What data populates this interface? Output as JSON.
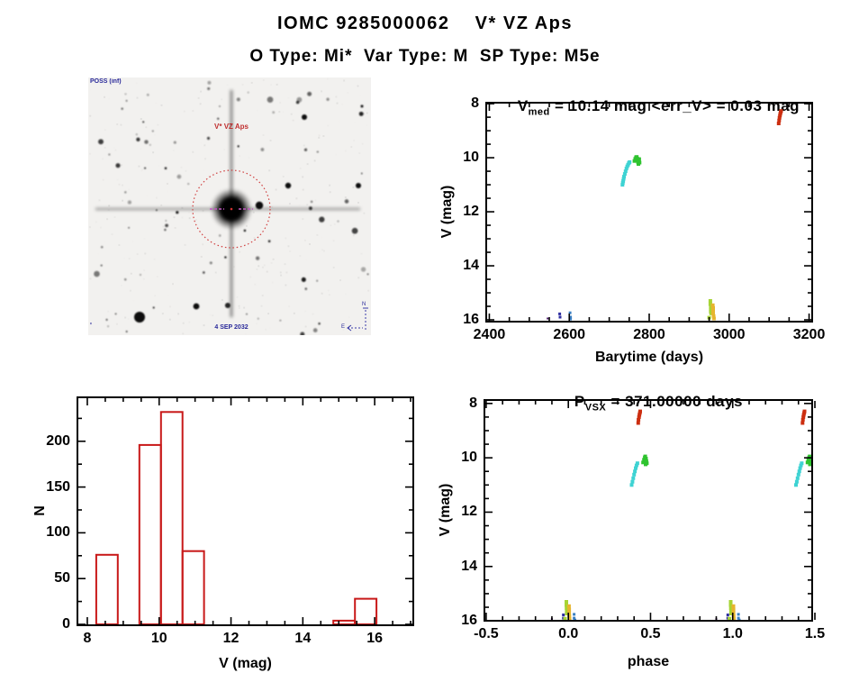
{
  "page": {
    "title": "IOMC 9285000062    V* VZ Aps",
    "subtitle": "O Type: Mi*  Var Type: M  SP Type: M5e",
    "background": "#ffffff",
    "axis_color": "#000000"
  },
  "finder": {
    "survey_label": "POSS (inf)",
    "target_label": "V* VZ Aps",
    "epoch_label": "4 SEP 2032",
    "scale_label": "'",
    "compass": {
      "north": "N",
      "east": "E"
    },
    "marker_color": "#d04040",
    "crosshair_color": "#c45ac4"
  },
  "chart_data": [
    {
      "id": "lightcurve",
      "type": "scatter",
      "title": {
        "main": "V",
        "sub": "med",
        "rest": " = 10.14 mag <err_V> = 0.03 mag"
      },
      "xlabel": "Barytime (days)",
      "ylabel": "V (mag)",
      "xlim": [
        2390,
        3210
      ],
      "ylim": [
        7.93,
        16.1
      ],
      "y_inverted": true,
      "xticks": [
        2400,
        2600,
        2800,
        3000,
        3200
      ],
      "xtick_labels": [
        "2400",
        "2600",
        "2800",
        "3000",
        "3200"
      ],
      "yticks": [
        8,
        10,
        12,
        14,
        16
      ],
      "ytick_labels": [
        "8",
        "10",
        "12",
        "14",
        "16"
      ],
      "x_minor": 50,
      "y_minor": 0.5,
      "grid": false,
      "series": [
        {
          "name": "epoch1-dark-purple",
          "color": "#441166",
          "size": 2,
          "points": [
            [
              2546,
              15.95
            ]
          ]
        },
        {
          "name": "epoch2-navy",
          "color": "#2d2da0",
          "size": 3,
          "points": [
            [
              2576,
              15.78
            ],
            [
              2577,
              15.9
            ]
          ]
        },
        {
          "name": "epoch3-blue",
          "color": "#3a7fc2",
          "size": 3,
          "points": [
            [
              2602,
              15.74
            ],
            [
              2603,
              15.9
            ],
            [
              2603,
              15.97
            ]
          ]
        },
        {
          "name": "epoch4-cyan",
          "color": "#3ed3d3",
          "size": 4,
          "points": [
            [
              2733,
              11.0
            ],
            [
              2734,
              10.93
            ],
            [
              2735,
              10.86
            ],
            [
              2736,
              10.78
            ],
            [
              2737,
              10.7
            ],
            [
              2739,
              10.6
            ],
            [
              2741,
              10.5
            ],
            [
              2743,
              10.4
            ],
            [
              2745,
              10.32
            ],
            [
              2747,
              10.26
            ],
            [
              2749,
              10.2
            ],
            [
              2751,
              10.16
            ]
          ]
        },
        {
          "name": "epoch5-green",
          "color": "#2fc32f",
          "size": 4,
          "points": [
            [
              2763,
              10.12
            ],
            [
              2765,
              10.04
            ],
            [
              2767,
              9.98
            ],
            [
              2769,
              9.97
            ],
            [
              2770,
              10.03
            ],
            [
              2771,
              10.1
            ],
            [
              2772,
              10.17
            ],
            [
              2773,
              10.23
            ],
            [
              2774,
              10.12
            ],
            [
              2775,
              10.05
            ],
            [
              2776,
              10.18
            ],
            [
              2768,
              10.08
            ]
          ]
        },
        {
          "name": "epoch6-yellow-green",
          "color": "#a6d435",
          "size": 4,
          "points": [
            [
              2953,
              15.3
            ],
            [
              2953,
              15.42
            ],
            [
              2954,
              15.52
            ],
            [
              2954,
              15.62
            ],
            [
              2954,
              15.7
            ],
            [
              2955,
              15.76
            ],
            [
              2950,
              15.92
            ]
          ]
        },
        {
          "name": "epoch7-yellow",
          "color": "#e6b42e",
          "size": 4,
          "points": [
            [
              2959,
              15.46
            ],
            [
              2960,
              15.56
            ],
            [
              2960,
              15.66
            ],
            [
              2960,
              15.76
            ],
            [
              2961,
              15.86
            ],
            [
              2962,
              15.95
            ]
          ]
        },
        {
          "name": "epoch8-red",
          "color": "#cc2e10",
          "size": 4,
          "points": [
            [
              3124,
              8.73
            ],
            [
              3125,
              8.62
            ],
            [
              3126,
              8.52
            ],
            [
              3127,
              8.44
            ],
            [
              3128,
              8.37
            ],
            [
              3129,
              8.31
            ],
            [
              3130,
              8.27
            ]
          ]
        }
      ]
    },
    {
      "id": "phase",
      "type": "scatter",
      "title": {
        "main": "P",
        "sub": "VSX",
        "rest": " = 371.00000 days"
      },
      "xlabel": "phase",
      "ylabel": "V (mag)",
      "xlim": [
        -0.516,
        1.489
      ],
      "ylim": [
        7.84,
        16.03
      ],
      "y_inverted": true,
      "xticks": [
        -0.5,
        0.0,
        0.5,
        1.0,
        1.5
      ],
      "xtick_labels": [
        "-0.5",
        "0.0",
        "0.5",
        "1.0",
        "1.5"
      ],
      "yticks": [
        8,
        10,
        12,
        14,
        16
      ],
      "ytick_labels": [
        "8",
        "10",
        "12",
        "14",
        "16"
      ],
      "x_minor": 0.1,
      "y_minor": 0.5,
      "grid": false,
      "series": [
        {
          "name": "epoch1-dark-purple",
          "color": "#441166",
          "size": 2,
          "points": [
            [
              -0.1,
              15.93
            ],
            [
              0.9,
              15.93
            ]
          ]
        },
        {
          "name": "epoch2-navy",
          "color": "#2d2da0",
          "size": 3,
          "points": [
            [
              -0.03,
              15.78
            ],
            [
              -0.03,
              15.9
            ],
            [
              0.97,
              15.78
            ],
            [
              0.97,
              15.9
            ]
          ]
        },
        {
          "name": "epoch3-blue",
          "color": "#3a7fc2",
          "size": 3,
          "points": [
            [
              0.035,
              15.76
            ],
            [
              0.035,
              15.9
            ],
            [
              0.04,
              15.97
            ],
            [
              1.035,
              15.76
            ],
            [
              1.035,
              15.9
            ],
            [
              1.04,
              15.97
            ]
          ]
        },
        {
          "name": "epoch4-cyan",
          "color": "#3ed3d3",
          "size": 4,
          "points": [
            [
              0.385,
              11.0
            ],
            [
              0.39,
              10.88
            ],
            [
              0.395,
              10.75
            ],
            [
              0.4,
              10.62
            ],
            [
              0.405,
              10.5
            ],
            [
              0.41,
              10.38
            ],
            [
              0.415,
              10.28
            ],
            [
              0.42,
              10.2
            ],
            [
              1.385,
              11.0
            ],
            [
              1.39,
              10.88
            ],
            [
              1.395,
              10.75
            ],
            [
              1.4,
              10.62
            ],
            [
              1.405,
              10.5
            ],
            [
              1.41,
              10.38
            ],
            [
              1.415,
              10.28
            ],
            [
              1.42,
              10.2
            ]
          ]
        },
        {
          "name": "epoch5-green",
          "color": "#2fc32f",
          "size": 4,
          "points": [
            [
              0.455,
              10.17
            ],
            [
              0.46,
              10.07
            ],
            [
              0.465,
              9.99
            ],
            [
              0.468,
              9.95
            ],
            [
              0.472,
              10.03
            ],
            [
              0.475,
              10.12
            ],
            [
              0.478,
              10.2
            ],
            [
              0.47,
              10.24
            ],
            [
              0.462,
              10.12
            ],
            [
              1.455,
              10.17
            ],
            [
              1.46,
              10.07
            ],
            [
              1.465,
              9.99
            ],
            [
              1.468,
              9.95
            ],
            [
              1.472,
              10.03
            ],
            [
              1.475,
              10.12
            ],
            [
              1.478,
              10.2
            ],
            [
              1.47,
              10.24
            ],
            [
              1.462,
              10.12
            ]
          ]
        },
        {
          "name": "epoch6-yellow-green",
          "color": "#a6d435",
          "size": 4,
          "points": [
            [
              -0.012,
              15.3
            ],
            [
              -0.012,
              15.42
            ],
            [
              -0.011,
              15.53
            ],
            [
              -0.01,
              15.63
            ],
            [
              -0.01,
              15.73
            ],
            [
              -0.02,
              15.92
            ],
            [
              0.988,
              15.3
            ],
            [
              0.988,
              15.42
            ],
            [
              0.989,
              15.53
            ],
            [
              0.99,
              15.63
            ],
            [
              0.99,
              15.73
            ],
            [
              0.98,
              15.92
            ]
          ]
        },
        {
          "name": "epoch7-yellow",
          "color": "#e6b42e",
          "size": 4,
          "points": [
            [
              0.004,
              15.46
            ],
            [
              0.005,
              15.58
            ],
            [
              0.005,
              15.7
            ],
            [
              0.006,
              15.82
            ],
            [
              0.007,
              15.92
            ],
            [
              1.004,
              15.46
            ],
            [
              1.005,
              15.58
            ],
            [
              1.005,
              15.7
            ],
            [
              1.006,
              15.82
            ],
            [
              1.007,
              15.92
            ]
          ]
        },
        {
          "name": "epoch8-red",
          "color": "#cc2e10",
          "size": 4,
          "points": [
            [
              0.425,
              8.72
            ],
            [
              0.427,
              8.6
            ],
            [
              0.43,
              8.5
            ],
            [
              0.432,
              8.42
            ],
            [
              0.435,
              8.35
            ],
            [
              0.437,
              8.29
            ],
            [
              1.425,
              8.72
            ],
            [
              1.427,
              8.6
            ],
            [
              1.43,
              8.5
            ],
            [
              1.432,
              8.42
            ],
            [
              1.435,
              8.35
            ],
            [
              1.437,
              8.29
            ]
          ]
        }
      ]
    },
    {
      "id": "histogram",
      "type": "histogram",
      "title": null,
      "xlabel": "V (mag)",
      "ylabel": "N",
      "xlim": [
        7.7,
        17.1
      ],
      "ylim": [
        0,
        249
      ],
      "y_inverted": false,
      "xticks": [
        8,
        10,
        12,
        14,
        16
      ],
      "xtick_labels": [
        "8",
        "10",
        "12",
        "14",
        "16"
      ],
      "yticks": [
        0,
        50,
        100,
        150,
        200
      ],
      "ytick_labels": [
        "0",
        "50",
        "100",
        "150",
        "200"
      ],
      "x_minor": 0.5,
      "y_minor": 25,
      "grid": false,
      "bar_color": "#c81818",
      "bars": [
        {
          "x0": 8.25,
          "x1": 8.85,
          "n": 76
        },
        {
          "x0": 9.45,
          "x1": 10.05,
          "n": 196
        },
        {
          "x0": 10.05,
          "x1": 10.65,
          "n": 232
        },
        {
          "x0": 10.65,
          "x1": 11.25,
          "n": 80
        },
        {
          "x0": 14.85,
          "x1": 15.45,
          "n": 4
        },
        {
          "x0": 15.45,
          "x1": 16.05,
          "n": 28
        }
      ]
    }
  ]
}
